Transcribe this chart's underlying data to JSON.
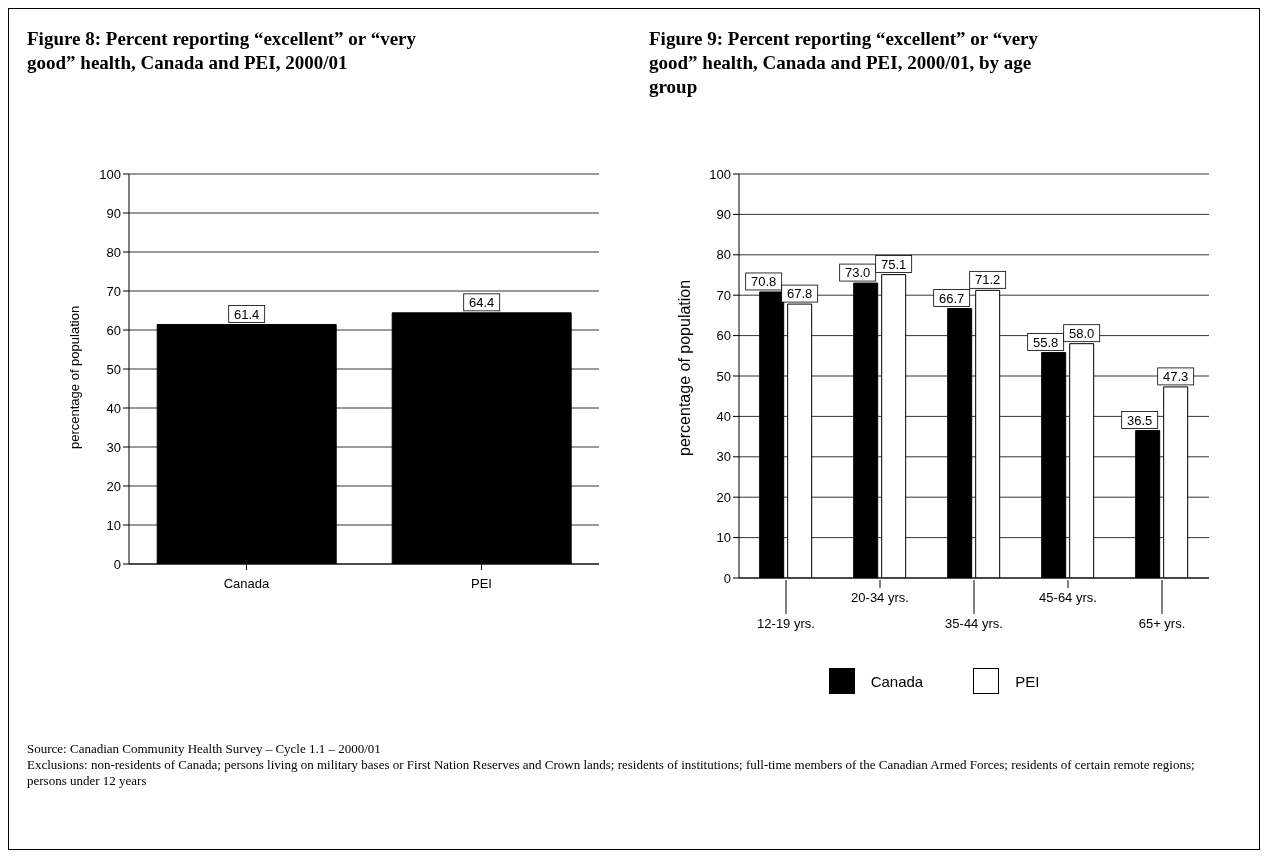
{
  "chart_data": [
    {
      "type": "bar",
      "title": "Figure 8:  Percent reporting “excellent” or “very good” health, Canada and PEI, 2000/01",
      "ylabel": "percentage of population",
      "categories": [
        "Canada",
        "PEI"
      ],
      "values": [
        61.4,
        64.4
      ],
      "color": "#000000",
      "ylim": [
        0,
        100
      ],
      "yticks": [
        0,
        10,
        20,
        30,
        40,
        50,
        60,
        70,
        80,
        90,
        100
      ],
      "grid": "y",
      "data_labels": true
    },
    {
      "type": "bar",
      "title": "Figure 9:  Percent reporting “excellent” or “very good” health, Canada and PEI, 2000/01, by age group",
      "ylabel": "percentage of population",
      "categories": [
        "12-19 yrs.",
        "20-34 yrs.",
        "35-44 yrs.",
        "45-64 yrs.",
        "65+ yrs."
      ],
      "series": [
        {
          "name": "Canada",
          "color": "#000000",
          "values": [
            70.8,
            73.0,
            66.7,
            55.8,
            36.5
          ],
          "value_labels": [
            "70.8",
            "73.0",
            "66.7",
            "55.8",
            "36.5"
          ]
        },
        {
          "name": "PEI",
          "color": "#ffffff",
          "values": [
            67.8,
            75.1,
            71.2,
            58.0,
            47.3
          ],
          "value_labels": [
            "67.8",
            "75.1",
            "71.2",
            "58.0",
            "47.3"
          ]
        }
      ],
      "ylim": [
        0,
        100
      ],
      "yticks": [
        0,
        10,
        20,
        30,
        40,
        50,
        60,
        70,
        80,
        90,
        100
      ],
      "grid": "y",
      "legend": "bottom",
      "annotations": [
        "Source:  Canadian Community Health Survey – Cycle 1.1 – 2000/01",
        "Exclusions: non-residents of Canada; persons living on military bases or First Nation Reserves and  Crown lands; residents of institutions; full-time members of the Canadian Armed Forces; residents of certain remote regions; persons under 12 years"
      ]
    }
  ]
}
